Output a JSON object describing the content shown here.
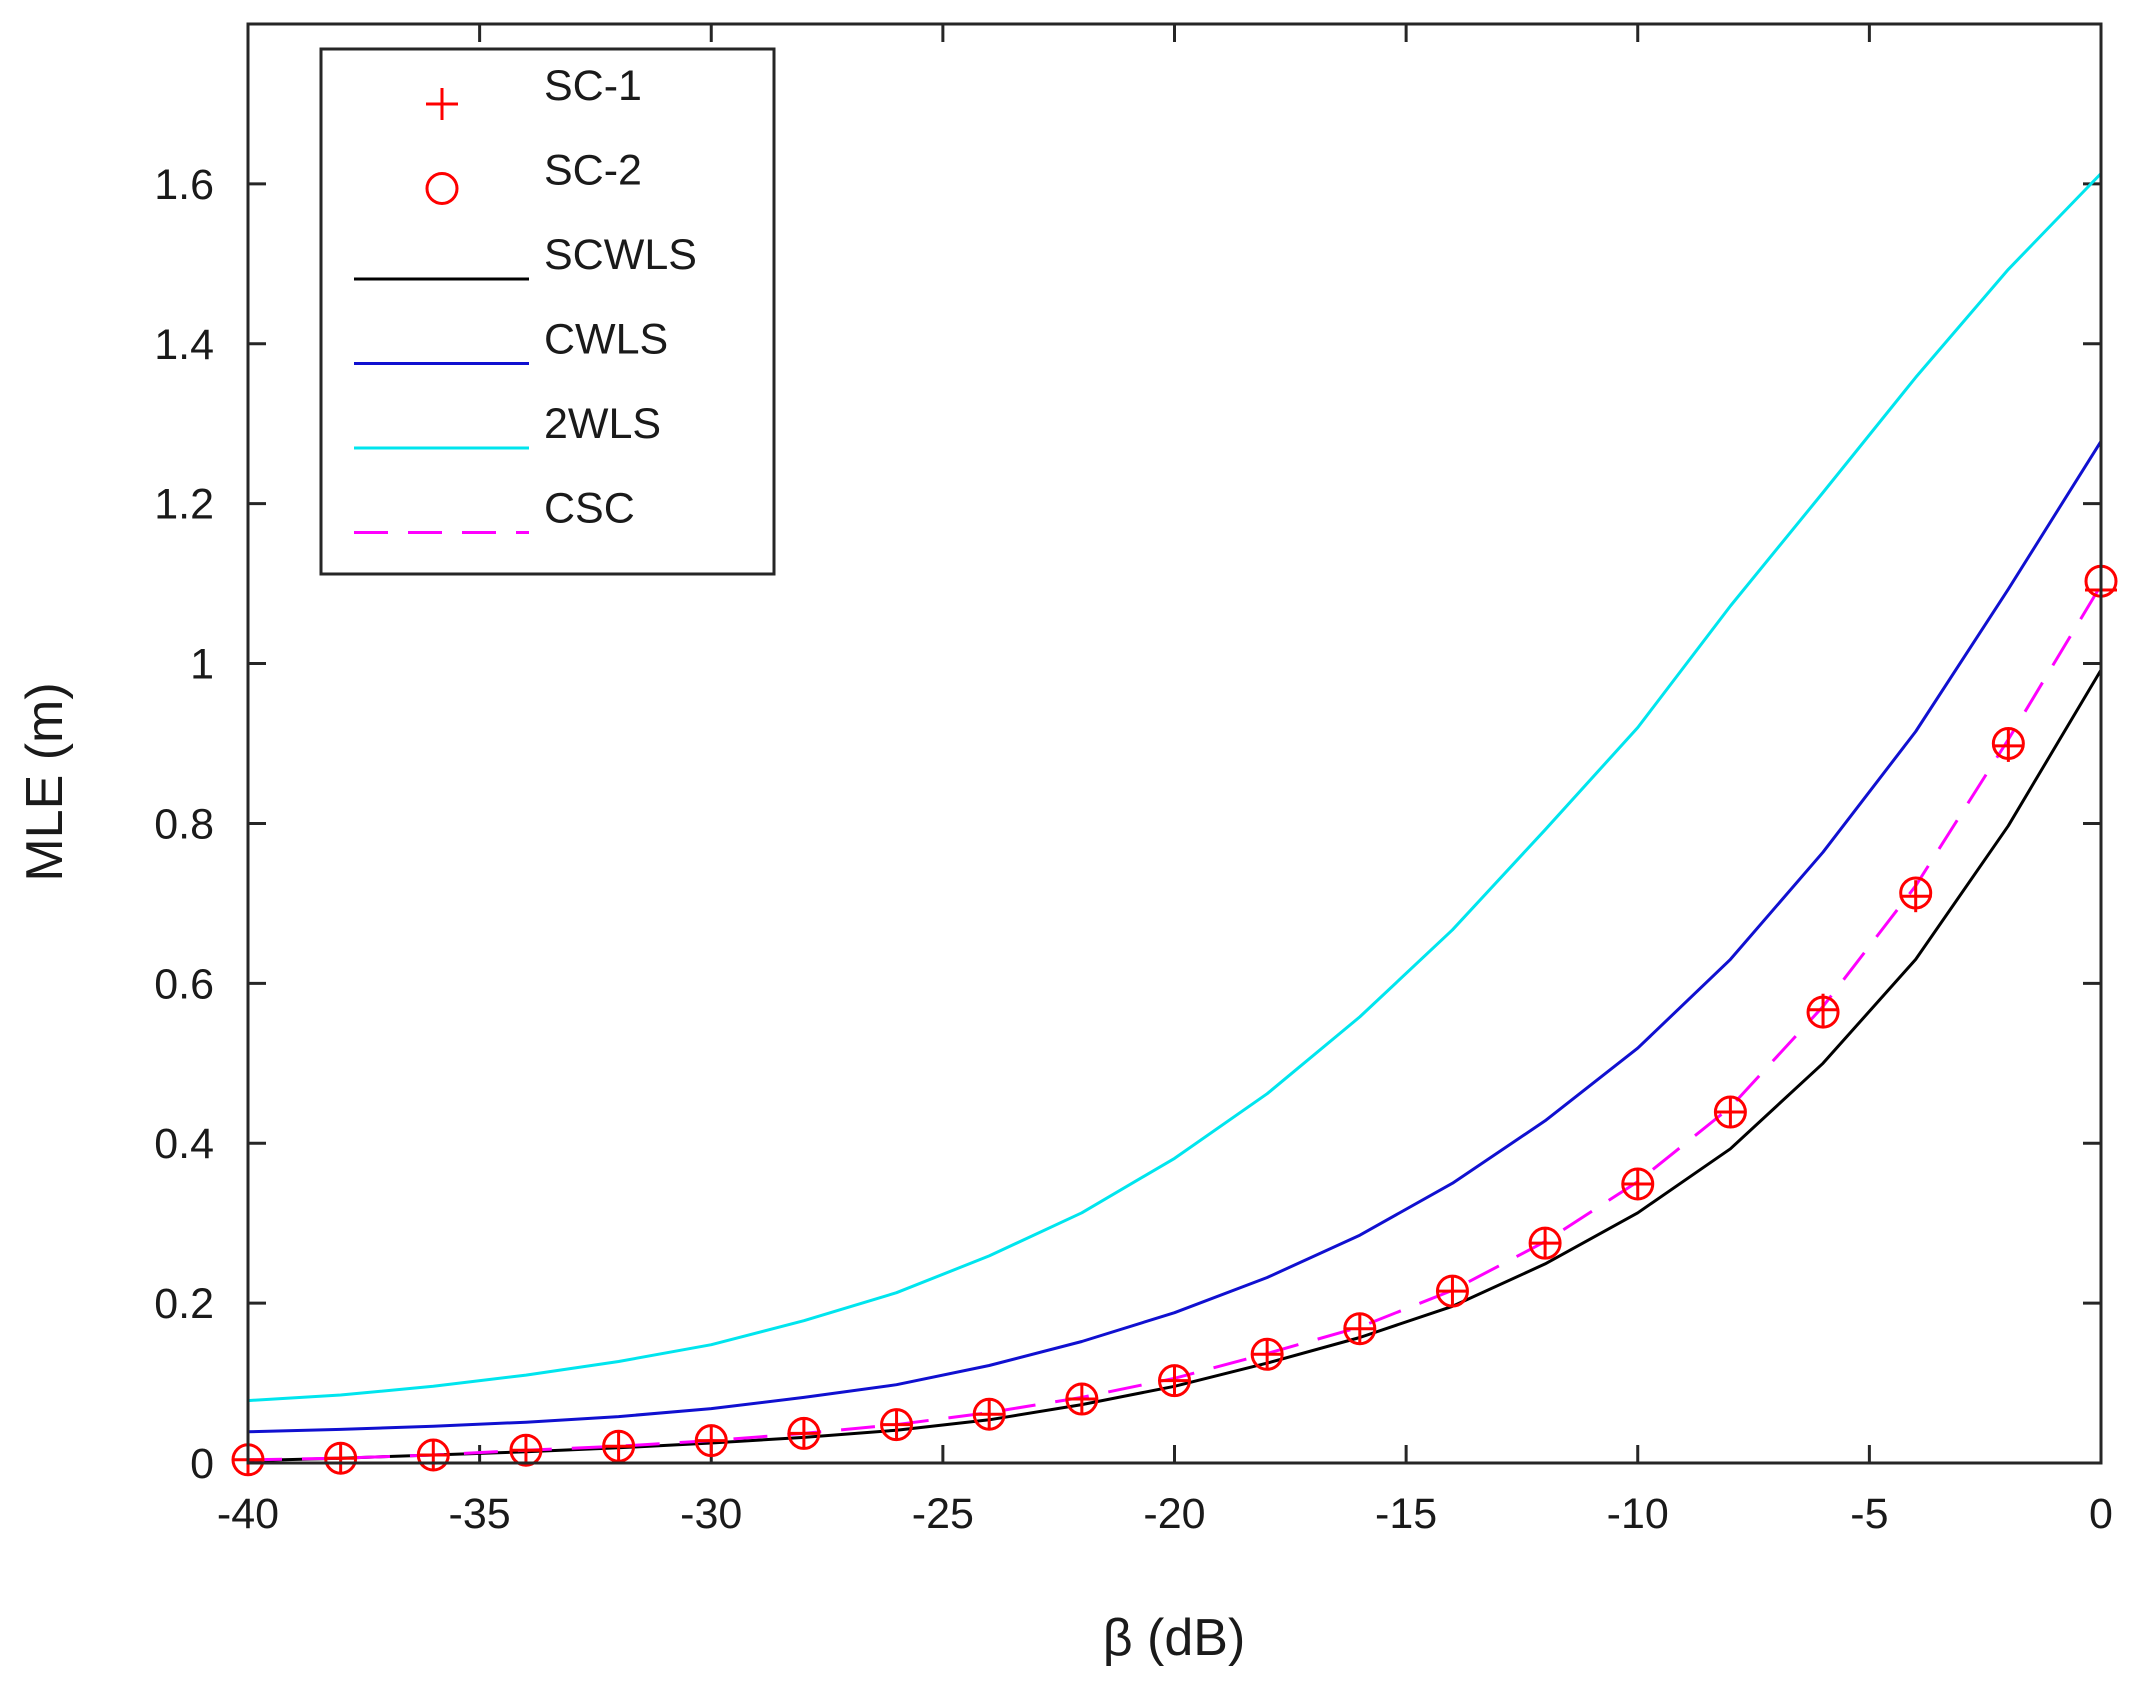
{
  "chart_data": {
    "type": "line",
    "title": "",
    "xlabel": "β (dB)",
    "ylabel": "MLE (m)",
    "xlim": [
      -40,
      0
    ],
    "ylim": [
      0,
      1.8
    ],
    "xticks": [
      -40,
      -35,
      -30,
      -25,
      -20,
      -15,
      -10,
      -5,
      0
    ],
    "xtick_labels": [
      "-40",
      "-35",
      "-30",
      "-25",
      "-20",
      "-15",
      "-10",
      "-5",
      "0"
    ],
    "yticks": [
      0,
      0.2,
      0.4,
      0.6,
      0.8,
      1.0,
      1.2,
      1.4,
      1.6
    ],
    "ytick_labels": [
      "0",
      "0.2",
      "0.4",
      "0.6",
      "0.8",
      "1",
      "1.2",
      "1.4",
      "1.6"
    ],
    "grid": false,
    "legend_position": "top-left",
    "x": [
      -40,
      -38,
      -36,
      -34,
      -32,
      -30,
      -28,
      -26,
      -24,
      -22,
      -20,
      -18,
      -16,
      -14,
      -12,
      -10,
      -8,
      -6,
      -4,
      -2,
      0
    ],
    "series": [
      {
        "name": "SC-1",
        "style": "marker",
        "marker": "plus",
        "color": "#ff0000",
        "values": [
          0.004,
          0.006,
          0.01,
          0.016,
          0.021,
          0.028,
          0.037,
          0.048,
          0.061,
          0.08,
          0.103,
          0.136,
          0.168,
          0.215,
          0.275,
          0.349,
          0.439,
          0.567,
          0.709,
          0.897,
          1.092
        ]
      },
      {
        "name": "SC-2",
        "style": "marker",
        "marker": "circle",
        "color": "#ff0000",
        "values": [
          0.004,
          0.006,
          0.01,
          0.016,
          0.021,
          0.028,
          0.037,
          0.048,
          0.061,
          0.08,
          0.103,
          0.136,
          0.168,
          0.215,
          0.275,
          0.349,
          0.439,
          0.564,
          0.713,
          0.9,
          1.103
        ]
      },
      {
        "name": "SCWLS",
        "style": "line",
        "dash": "solid",
        "color": "#000000",
        "values": [
          0.003,
          0.006,
          0.01,
          0.014,
          0.019,
          0.025,
          0.032,
          0.041,
          0.054,
          0.073,
          0.096,
          0.125,
          0.157,
          0.196,
          0.249,
          0.313,
          0.393,
          0.5,
          0.63,
          0.797,
          0.992
        ]
      },
      {
        "name": "CWLS",
        "style": "line",
        "dash": "solid",
        "color": "#1010d0",
        "values": [
          0.039,
          0.042,
          0.046,
          0.051,
          0.058,
          0.068,
          0.082,
          0.098,
          0.122,
          0.152,
          0.188,
          0.232,
          0.285,
          0.35,
          0.428,
          0.519,
          0.63,
          0.764,
          0.915,
          1.093,
          1.278
        ]
      },
      {
        "name": "2WLS",
        "style": "line",
        "dash": "solid",
        "color": "#00e5ee",
        "values": [
          0.078,
          0.085,
          0.096,
          0.11,
          0.127,
          0.148,
          0.178,
          0.213,
          0.259,
          0.313,
          0.381,
          0.462,
          0.558,
          0.667,
          0.792,
          0.92,
          1.072,
          1.214,
          1.358,
          1.493,
          1.613
        ]
      },
      {
        "name": "CSC",
        "style": "line",
        "dash": "dashed",
        "color": "#ff00ff",
        "values": [
          0.004,
          0.006,
          0.01,
          0.016,
          0.021,
          0.028,
          0.037,
          0.048,
          0.063,
          0.082,
          0.106,
          0.137,
          0.17,
          0.216,
          0.277,
          0.352,
          0.445,
          0.571,
          0.722,
          0.905,
          1.098
        ]
      }
    ]
  }
}
